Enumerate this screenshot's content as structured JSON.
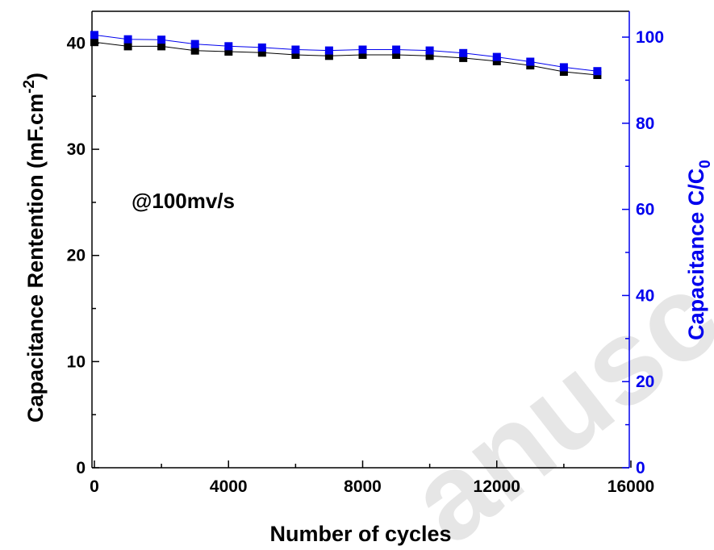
{
  "chart_data": {
    "type": "line",
    "title": "",
    "annotation": "@100mv/s",
    "xlabel": "Number of cycles",
    "ylabel_left": {
      "text": "Capacitance Rentention (mF.cm",
      "sup": "-2",
      "close": ")"
    },
    "ylabel_right": {
      "text": "Capacitance C/C",
      "sub": "0"
    },
    "xlim": [
      0,
      16000
    ],
    "ylim_left": [
      0,
      43
    ],
    "ylim_right": [
      0,
      106
    ],
    "x_ticks": [
      "0",
      "4000",
      "8000",
      "12000",
      "16000"
    ],
    "y_left_ticks": [
      "0",
      "10",
      "20",
      "30",
      "40"
    ],
    "y_right_ticks": [
      "0",
      "20",
      "40",
      "60",
      "80",
      "100"
    ],
    "x": [
      0,
      1000,
      2000,
      3000,
      4000,
      5000,
      6000,
      7000,
      8000,
      9000,
      10000,
      11000,
      12000,
      13000,
      14000,
      15000
    ],
    "series": [
      {
        "axis": "left",
        "color": "#000000",
        "values": [
          40.1,
          39.7,
          39.7,
          39.3,
          39.2,
          39.1,
          38.9,
          38.8,
          38.9,
          38.9,
          38.8,
          38.6,
          38.3,
          37.9,
          37.3,
          37.0
        ]
      },
      {
        "axis": "right",
        "color": "#0000ee",
        "values": [
          100.5,
          99.5,
          99.4,
          98.4,
          97.9,
          97.6,
          97.1,
          96.9,
          97.1,
          97.1,
          96.9,
          96.3,
          95.4,
          94.3,
          93.0,
          92.1
        ]
      }
    ],
    "colors": {
      "left_axis": "#000000",
      "right_axis": "#0000ee"
    },
    "grid": false,
    "legend": "none"
  },
  "watermark": {
    "text": "anusc"
  }
}
